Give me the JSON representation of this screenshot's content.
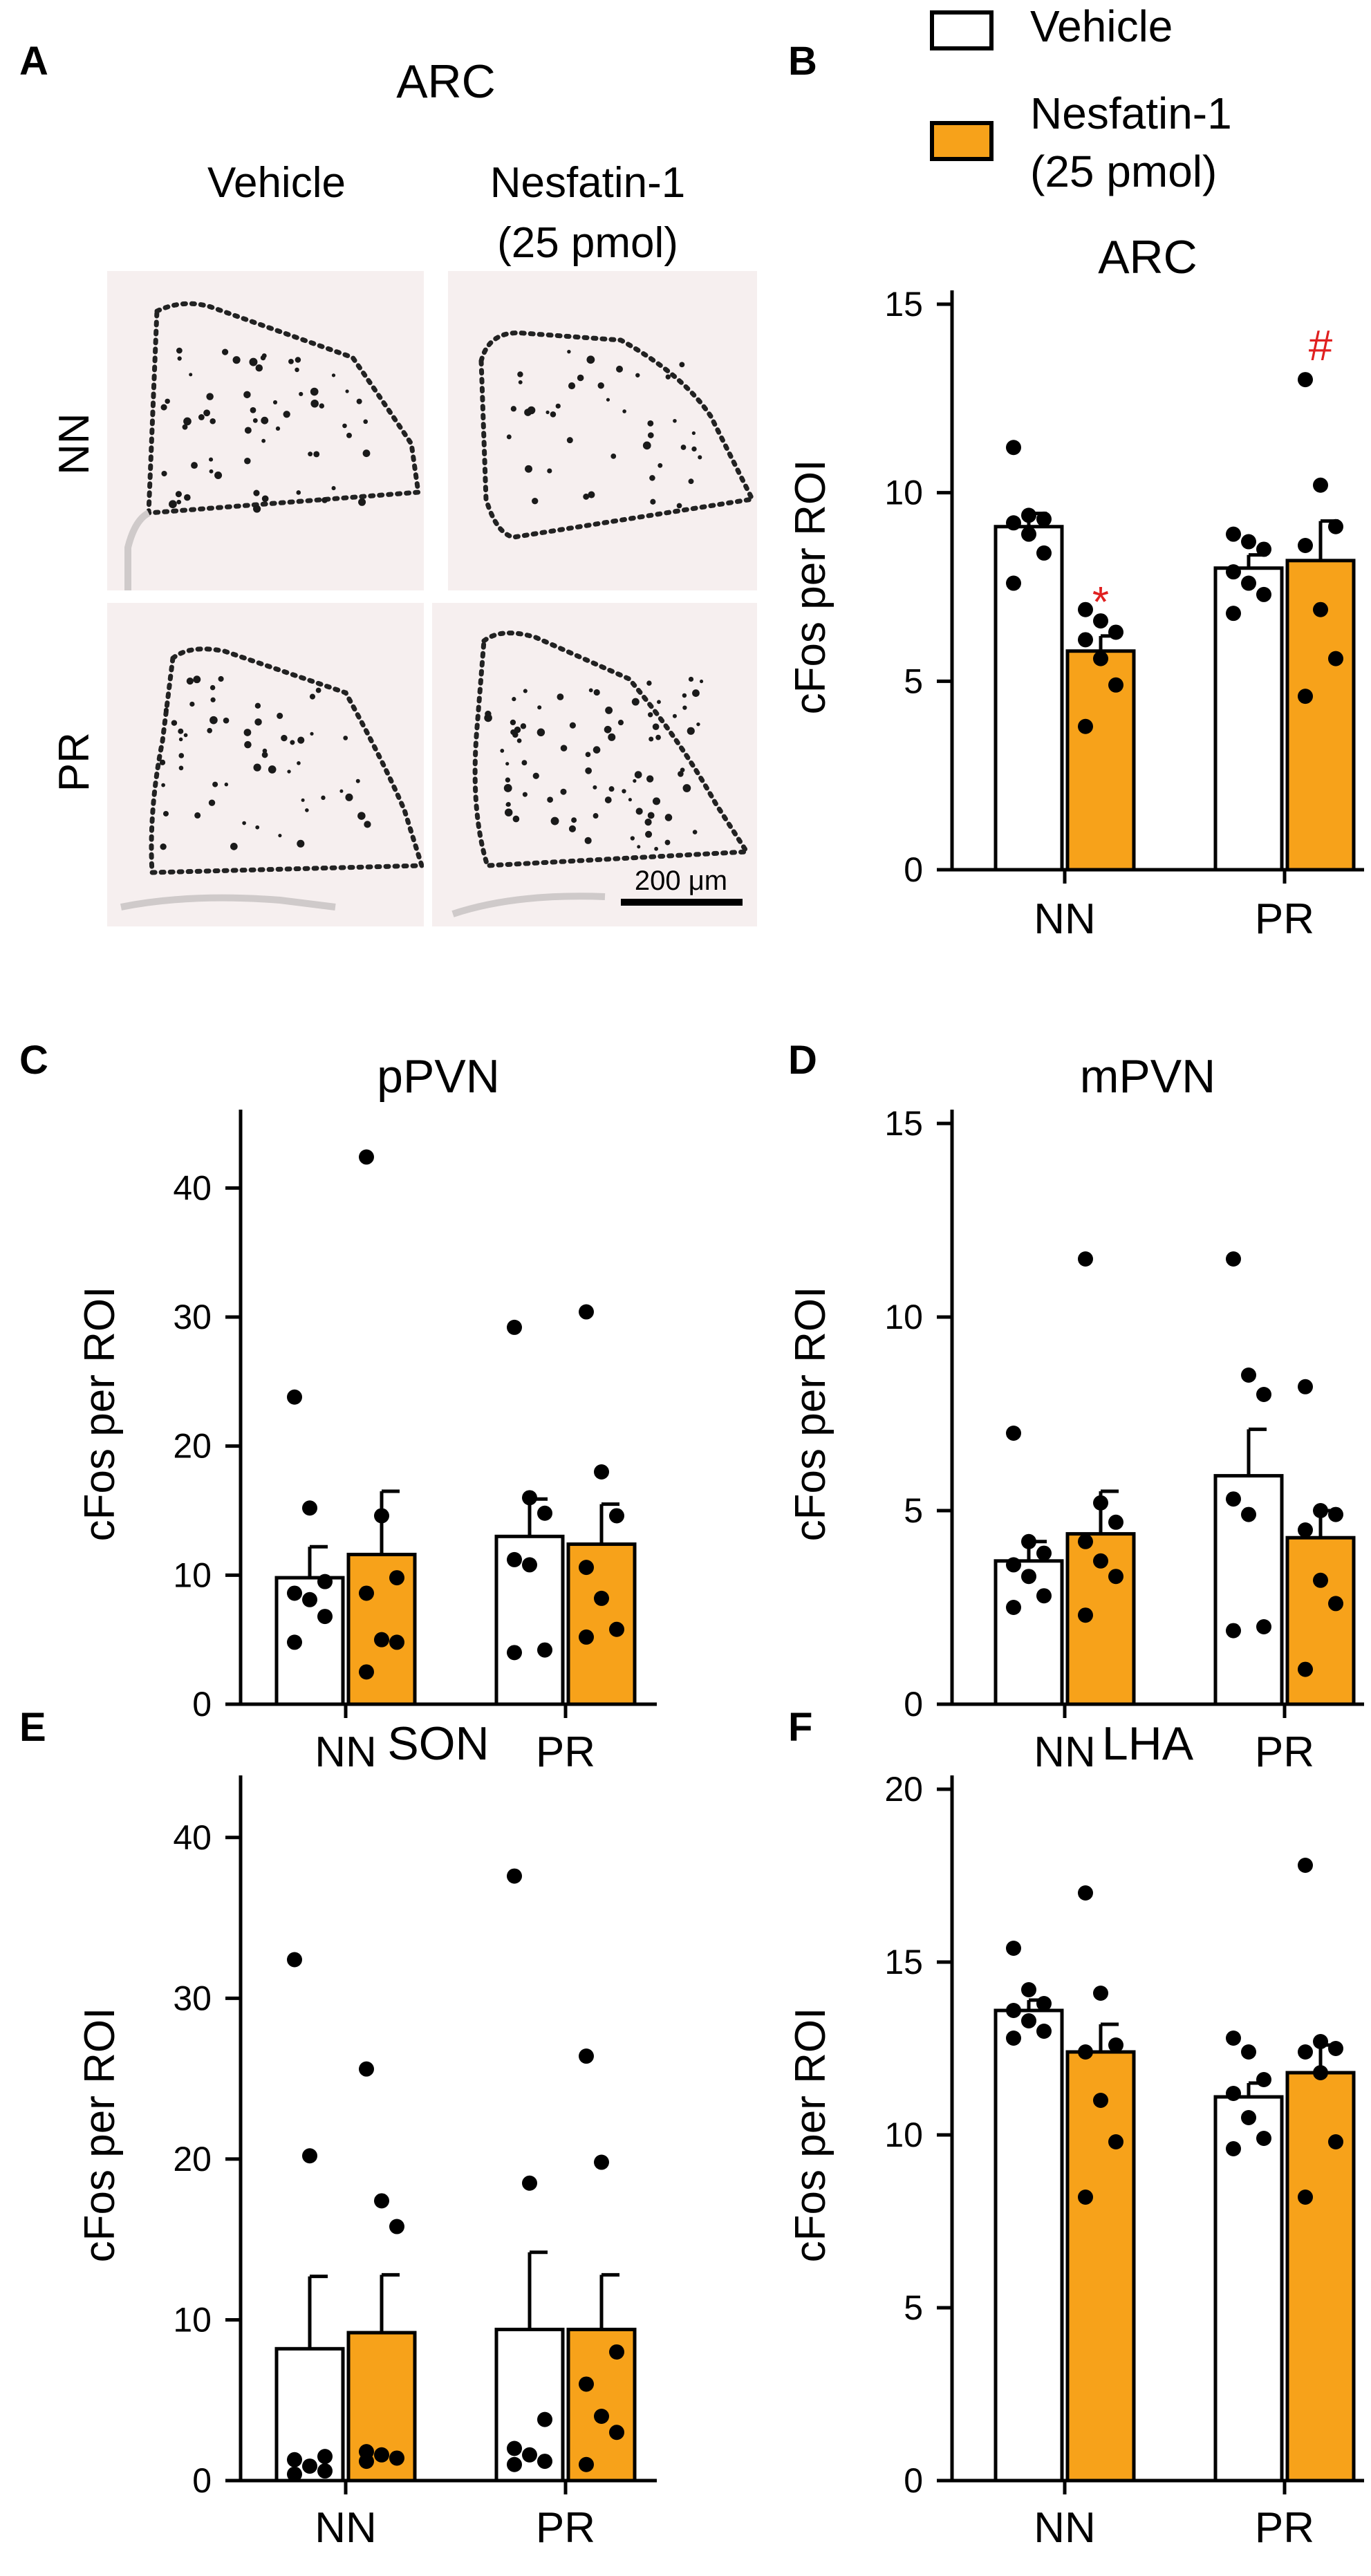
{
  "colors": {
    "vehicle": "#ffffff",
    "nesfatin": "#f7a21a",
    "stroke": "#000000",
    "sig": "#e02020"
  },
  "panel_letters": {
    "A": "A",
    "B": "B",
    "C": "C",
    "D": "D",
    "E": "E",
    "F": "F"
  },
  "panel_a": {
    "title": "ARC",
    "col_vehicle": "Vehicle",
    "col_nesfatin_line1": "Nesfatin-1",
    "col_nesfatin_line2": "(25 pmol)",
    "row_nn": "NN",
    "row_pr": "PR",
    "scale_bar": "200 μm"
  },
  "legend": {
    "vehicle": "Vehicle",
    "nesfatin_line1": "Nesfatin-1",
    "nesfatin_line2": "(25 pmol)"
  },
  "chart_data": [
    {
      "id": "B",
      "type": "bar",
      "title": "ARC",
      "ylabel": "cFos per ROI",
      "categories": [
        "NN",
        "PR"
      ],
      "ylim": [
        0,
        15
      ],
      "yticks": [
        0,
        5,
        10,
        15
      ],
      "series": [
        {
          "name": "Vehicle",
          "values": [
            9.1,
            8.0
          ],
          "sem": [
            0.35,
            0.35
          ],
          "points": [
            [
              11.2,
              9.4,
              9.3,
              9.2,
              8.9,
              8.4,
              7.6
            ],
            [
              8.9,
              8.7,
              8.5,
              7.9,
              7.6,
              7.3,
              6.8
            ]
          ]
        },
        {
          "name": "Nesfatin-1 (25 pmol)",
          "values": [
            5.8,
            8.2
          ],
          "sem": [
            0.4,
            1.05
          ],
          "points": [
            [
              6.9,
              6.6,
              6.3,
              6.1,
              5.6,
              4.9,
              3.8
            ],
            [
              13.0,
              10.2,
              9.1,
              8.6,
              6.9,
              5.6,
              4.6
            ]
          ]
        }
      ],
      "annotations": [
        {
          "text": "*",
          "category": "NN",
          "series": 1
        },
        {
          "text": "#",
          "category": "PR",
          "series": 1
        }
      ]
    },
    {
      "id": "C",
      "type": "bar",
      "title": "pPVN",
      "ylabel": "cFos per ROI",
      "categories": [
        "NN",
        "PR"
      ],
      "ylim": [
        0,
        45
      ],
      "yticks": [
        0,
        10,
        20,
        30,
        40
      ],
      "series": [
        {
          "name": "Vehicle",
          "values": [
            9.8,
            13.0
          ],
          "sem": [
            2.4,
            2.9
          ],
          "points": [
            [
              23.8,
              15.2,
              9.5,
              8.6,
              8.1,
              6.8,
              4.8
            ],
            [
              29.2,
              16.0,
              14.8,
              11.2,
              10.8,
              4.2,
              4.0
            ]
          ]
        },
        {
          "name": "Nesfatin-1 (25 pmol)",
          "values": [
            11.6,
            12.4
          ],
          "sem": [
            4.9,
            3.1
          ],
          "points": [
            [
              42.4,
              14.6,
              9.8,
              8.6,
              5.0,
              4.8,
              2.5
            ],
            [
              30.4,
              18.0,
              14.6,
              10.6,
              8.2,
              5.8,
              5.2
            ]
          ]
        }
      ]
    },
    {
      "id": "D",
      "type": "bar",
      "title": "mPVN",
      "ylabel": "cFos per ROI",
      "categories": [
        "NN",
        "PR"
      ],
      "ylim": [
        0,
        15
      ],
      "yticks": [
        0,
        5,
        10,
        15
      ],
      "series": [
        {
          "name": "Vehicle",
          "values": [
            3.7,
            5.9
          ],
          "sem": [
            0.5,
            1.2
          ],
          "points": [
            [
              7.0,
              4.2,
              3.9,
              3.6,
              3.3,
              2.8,
              2.5
            ],
            [
              11.5,
              8.5,
              8.0,
              5.3,
              4.9,
              2.0,
              1.9
            ]
          ]
        },
        {
          "name": "Nesfatin-1 (25 pmol)",
          "values": [
            4.4,
            4.3
          ],
          "sem": [
            1.1,
            0.7
          ],
          "points": [
            [
              11.5,
              5.2,
              4.7,
              4.2,
              3.7,
              3.3,
              2.3
            ],
            [
              8.2,
              5.0,
              4.9,
              4.5,
              3.2,
              2.6,
              0.9
            ]
          ]
        }
      ]
    },
    {
      "id": "E",
      "type": "bar",
      "title": "SON",
      "ylabel": "cFos per ROI",
      "categories": [
        "NN",
        "PR"
      ],
      "ylim": [
        0,
        43
      ],
      "yticks": [
        0,
        10,
        20,
        30,
        40
      ],
      "series": [
        {
          "name": "Vehicle",
          "values": [
            8.2,
            9.4
          ],
          "sem": [
            4.5,
            4.8
          ],
          "points": [
            [
              32.4,
              20.2,
              1.5,
              1.3,
              0.9,
              0.6,
              0.4
            ],
            [
              37.6,
              18.5,
              3.8,
              2.0,
              1.6,
              1.2,
              1.0
            ]
          ]
        },
        {
          "name": "Nesfatin-1 (25 pmol)",
          "values": [
            9.2,
            9.4
          ],
          "sem": [
            3.6,
            3.4
          ],
          "points": [
            [
              25.6,
              17.4,
              15.8,
              1.8,
              1.6,
              1.4,
              1.2
            ],
            [
              26.4,
              19.8,
              8.0,
              6.0,
              4.0,
              3.0,
              1.0
            ]
          ]
        }
      ]
    },
    {
      "id": "F",
      "type": "bar",
      "title": "LHA",
      "ylabel": "cFos per ROI",
      "categories": [
        "NN",
        "PR"
      ],
      "ylim": [
        0,
        20
      ],
      "yticks": [
        0,
        5,
        10,
        15,
        20
      ],
      "series": [
        {
          "name": "Vehicle",
          "values": [
            13.6,
            11.1
          ],
          "sem": [
            0.3,
            0.4
          ],
          "points": [
            [
              15.4,
              14.2,
              13.8,
              13.6,
              13.3,
              13.0,
              12.8
            ],
            [
              12.8,
              12.4,
              11.6,
              11.2,
              10.5,
              9.9,
              9.6
            ]
          ]
        },
        {
          "name": "Nesfatin-1 (25 pmol)",
          "values": [
            12.4,
            11.8
          ],
          "sem": [
            0.8,
            0.8
          ],
          "points": [
            [
              17.0,
              14.1,
              12.6,
              12.4,
              11.0,
              9.8,
              8.2
            ],
            [
              17.8,
              12.7,
              12.5,
              12.4,
              11.8,
              9.8,
              8.2
            ]
          ]
        }
      ]
    }
  ]
}
